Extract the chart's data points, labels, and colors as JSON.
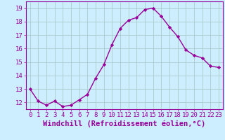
{
  "x": [
    0,
    1,
    2,
    3,
    4,
    5,
    6,
    7,
    8,
    9,
    10,
    11,
    12,
    13,
    14,
    15,
    16,
    17,
    18,
    19,
    20,
    21,
    22,
    23
  ],
  "y": [
    13.0,
    12.1,
    11.8,
    12.1,
    11.7,
    11.8,
    12.2,
    12.6,
    13.8,
    14.8,
    16.3,
    17.5,
    18.1,
    18.3,
    18.9,
    19.0,
    18.4,
    17.6,
    16.9,
    15.9,
    15.5,
    15.3,
    14.7,
    14.6
  ],
  "line_color": "#990099",
  "marker": "D",
  "marker_size": 2.2,
  "linewidth": 1.0,
  "xlabel": "Windchill (Refroidissement éolien,°C)",
  "ylim": [
    11.5,
    19.5
  ],
  "xlim": [
    -0.5,
    23.5
  ],
  "yticks": [
    12,
    13,
    14,
    15,
    16,
    17,
    18,
    19
  ],
  "xticks": [
    0,
    1,
    2,
    3,
    4,
    5,
    6,
    7,
    8,
    9,
    10,
    11,
    12,
    13,
    14,
    15,
    16,
    17,
    18,
    19,
    20,
    21,
    22,
    23
  ],
  "bg_color": "#cceeff",
  "grid_color": "#aacccc",
  "tick_color": "#990099",
  "xlabel_fontsize": 7.5,
  "tick_fontsize": 6.5
}
